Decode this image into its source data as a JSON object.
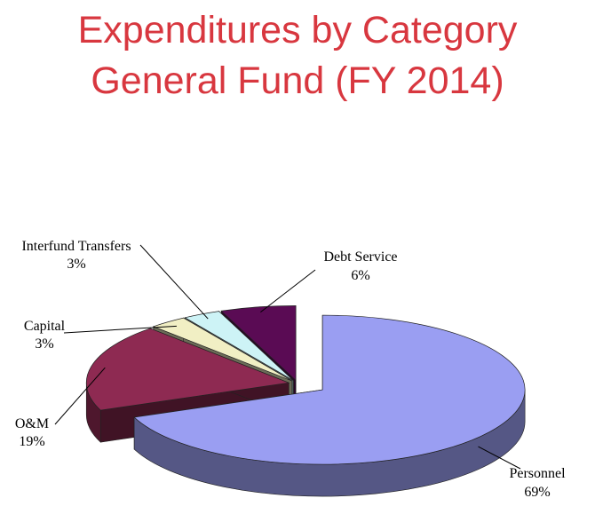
{
  "title_line1": "Expenditures by Category",
  "title_line2": "General Fund (FY 2014)",
  "chart_data": {
    "type": "pie",
    "style": "3d-exploded",
    "title": "Expenditures by Category General Fund (FY 2014)",
    "slices": [
      {
        "name": "Personnel",
        "label": "Personnel",
        "pct_label": "69%",
        "value": 69,
        "color": "#9a9ef2"
      },
      {
        "name": "O&M",
        "label": "O&M",
        "pct_label": "19%",
        "value": 19,
        "color": "#8e2a52"
      },
      {
        "name": "Capital",
        "label": "Capital",
        "pct_label": "3%",
        "value": 3,
        "color": "#f1efc4"
      },
      {
        "name": "Interfund Transfers",
        "label": "Interfund Transfers",
        "pct_label": "3%",
        "value": 3,
        "color": "#cdf3f6"
      },
      {
        "name": "Debt Service",
        "label": "Debt Service",
        "pct_label": "6%",
        "value": 6,
        "color": "#5a0b54"
      }
    ]
  }
}
